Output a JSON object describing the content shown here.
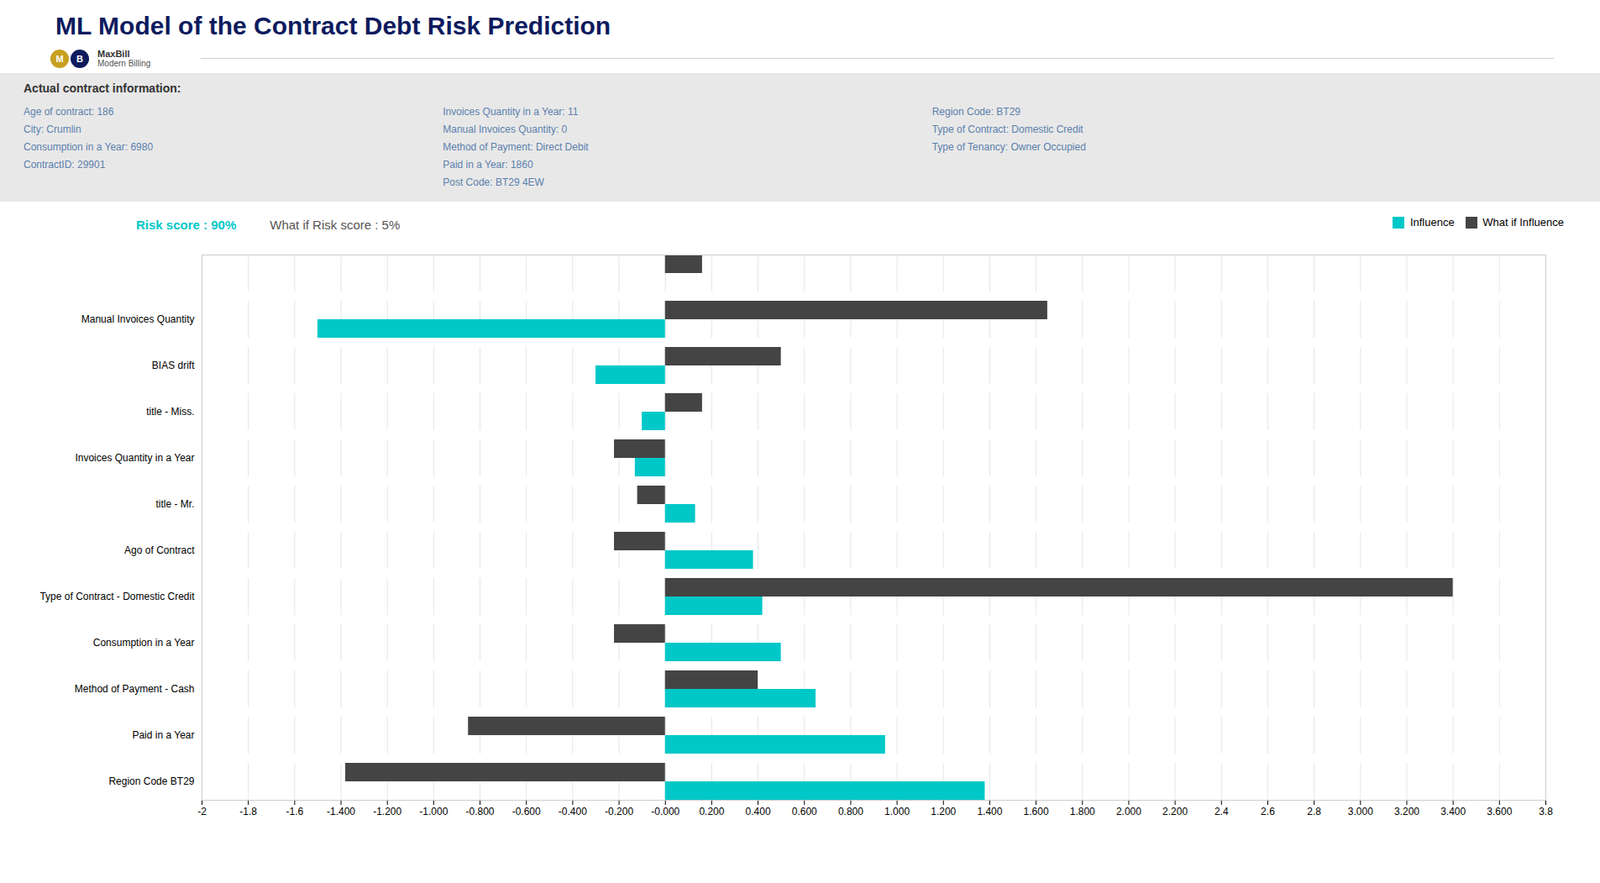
{
  "chart_data": {
    "type": "bar",
    "orientation": "horizontal",
    "title": "ML Model of the Contract Debt Risk Prediction",
    "subtitle": [
      "Risk score : 90%",
      "What if Risk score : 5%"
    ],
    "annotations": [
      [
        "M",
        "B",
        "MaxBill",
        "Modern Billing"
      ],
      [
        "Actual contract information:"
      ],
      [
        "Age of contract: 186",
        "City: Crumlin",
        "Consumption in a Year: 6980",
        "ContractID: 29901"
      ],
      [
        "Invoices Quantity in a Year: 11",
        "Manual Invoices Quantity: 0",
        "Method of Payment: Direct Debit",
        "Paid in a Year: 1860",
        "Post Code: BT29 4EW"
      ],
      [
        "Region Code: BT29",
        "Type of Contract: Domestic Credit",
        "Type of Tenancy: Owner Occupied"
      ]
    ],
    "categories": [
      "Region Code BT29",
      "Paid in a Year",
      "Method of Payment - Cash",
      "Consumption in a Year",
      "Type of Contract - Domestic Credit",
      "Ago of Contract",
      "title - Mr.",
      "Invoices Quantity in a Year",
      "title - Miss.",
      "BIAS drift",
      "Manual Invoices Quantity",
      null
    ],
    "series": [
      {
        "name": "Influence",
        "color": "#00c8c8",
        "values": [
          1.38,
          0.95,
          0.65,
          0.5,
          0.42,
          0.38,
          0.13,
          -0.13,
          -0.1,
          -0.3,
          -1.5,
          null
        ]
      },
      {
        "name": "What if Influence",
        "color": "#444444",
        "values": [
          -1.38,
          -0.85,
          0.4,
          -0.22,
          3.4,
          -0.22,
          -0.12,
          -0.22,
          0.16,
          0.5,
          1.65,
          0.16
        ]
      }
    ],
    "xlim": [
      -2.0,
      3.8
    ],
    "xticks": [
      -2,
      -1.8,
      -1.6,
      {
        "value": -1.4,
        "label": "-1.400"
      },
      {
        "value": -1.2,
        "label": "-1.200"
      },
      {
        "value": -1.0,
        "label": "-1.000"
      },
      {
        "value": -0.8,
        "label": "-0.800"
      },
      {
        "value": -0.6,
        "label": "-0.600"
      },
      {
        "value": -0.4,
        "label": "-0.400"
      },
      {
        "value": -0.2,
        "label": "-0.200"
      },
      {
        "value": 0.0,
        "label": "-0.000"
      },
      {
        "value": 0.2,
        "label": "0.200"
      },
      {
        "value": 0.4,
        "label": "0.400"
      },
      {
        "value": 0.6,
        "label": "0.600"
      },
      {
        "value": 0.8,
        "label": "0.800"
      },
      {
        "value": 1.0,
        "label": "1.000"
      },
      {
        "value": 1.2,
        "label": "1.200"
      },
      {
        "value": 1.4,
        "label": "1.400"
      },
      {
        "value": 1.6,
        "label": "1.600"
      },
      {
        "value": 1.8,
        "label": "1.800"
      },
      {
        "value": 2.0,
        "label": "2.000"
      },
      {
        "value": 2.2,
        "label": "2.200"
      },
      2.4,
      2.6,
      2.8,
      {
        "value": 3.0,
        "label": "3.000"
      },
      {
        "value": 3.2,
        "label": "3.200"
      },
      {
        "value": 3.4,
        "label": "3.400"
      },
      {
        "value": 3.6,
        "label": "3.600"
      },
      3.8
    ],
    "grid": true,
    "legend": "top"
  }
}
